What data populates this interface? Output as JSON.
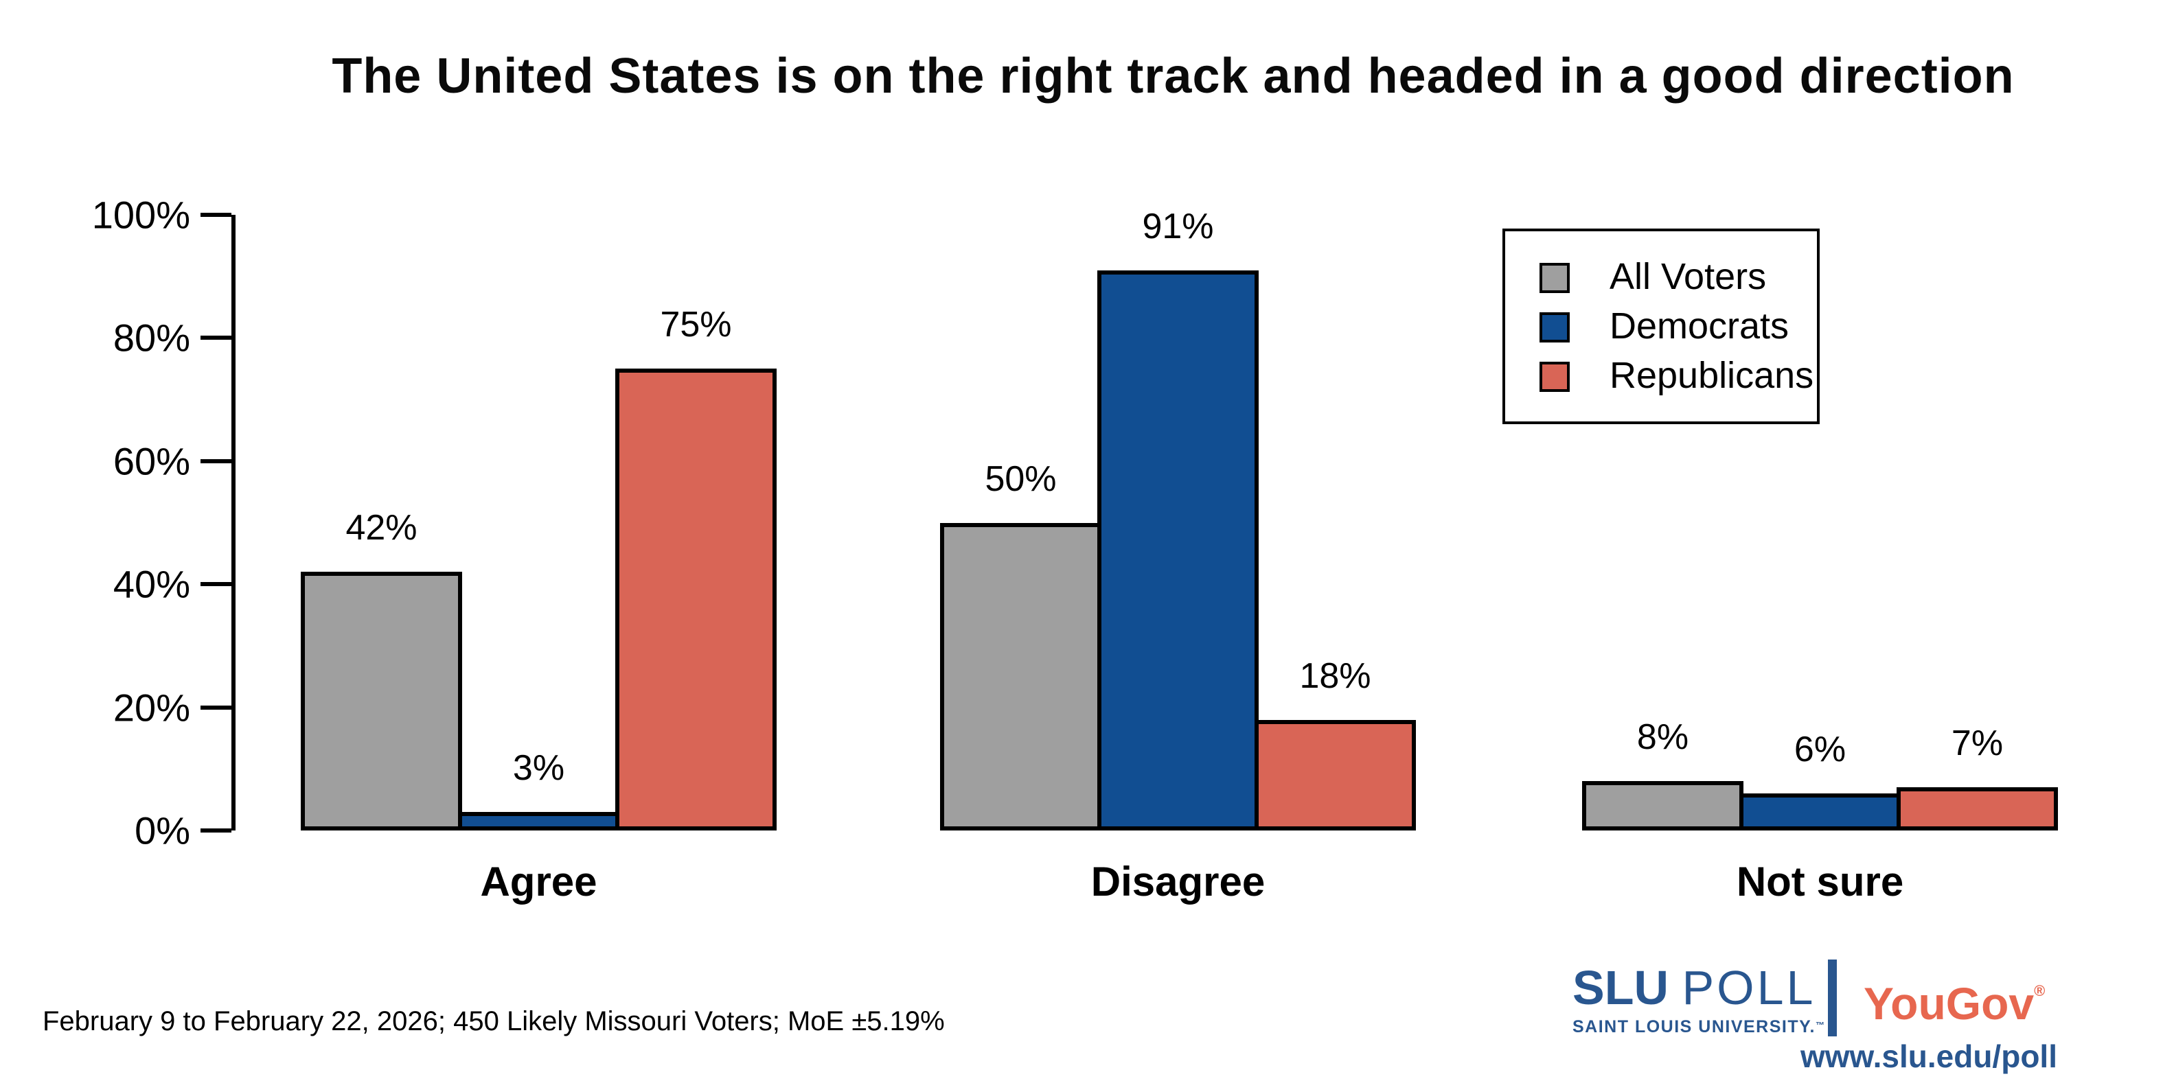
{
  "page": {
    "background": "#FFFFFF"
  },
  "chart_data": {
    "type": "bar",
    "title": "The United States is on the right track and headed in a good direction",
    "categories": [
      "Agree",
      "Disagree",
      "Not sure"
    ],
    "series": [
      {
        "name": "All Voters",
        "color": "#9F9F9F",
        "values": [
          42,
          50,
          8
        ]
      },
      {
        "name": "Democrats",
        "color": "#114E92",
        "values": [
          3,
          91,
          6
        ]
      },
      {
        "name": "Republicans",
        "color": "#D96556",
        "values": [
          75,
          18,
          7
        ]
      }
    ],
    "value_suffix": "%",
    "xlabel": "",
    "ylabel": "",
    "ylim": [
      0,
      100
    ],
    "y_ticks": [
      {
        "label": "0%",
        "value": 0
      },
      {
        "label": "20%",
        "value": 20
      },
      {
        "label": "40%",
        "value": 40
      },
      {
        "label": "60%",
        "value": 60
      },
      {
        "label": "80%",
        "value": 80
      },
      {
        "label": "100%",
        "value": 100
      }
    ],
    "grid": false,
    "bar_outline": "#000000",
    "legend_position": "top-right"
  },
  "legend": {
    "items": [
      {
        "label": "All Voters",
        "color": "#9F9F9F"
      },
      {
        "label": "Democrats",
        "color": "#114E92"
      },
      {
        "label": "Republicans",
        "color": "#D96556"
      }
    ]
  },
  "footnote": "February 9 to February 22, 2026; 450 Likely Missouri Voters; MoE ±5.19%",
  "branding": {
    "slu_poll": {
      "name_bold": "SLU",
      "name_light": "POLL",
      "subtitle": "SAINT LOUIS UNIVERSITY.",
      "trademark": "™",
      "color": "#29568F"
    },
    "separator_color": "#29568F",
    "yougov": {
      "name": "YouGov",
      "registered": "®",
      "color": "#E7674F"
    },
    "url": "www.slu.edu/poll",
    "url_color": "#29568F"
  }
}
